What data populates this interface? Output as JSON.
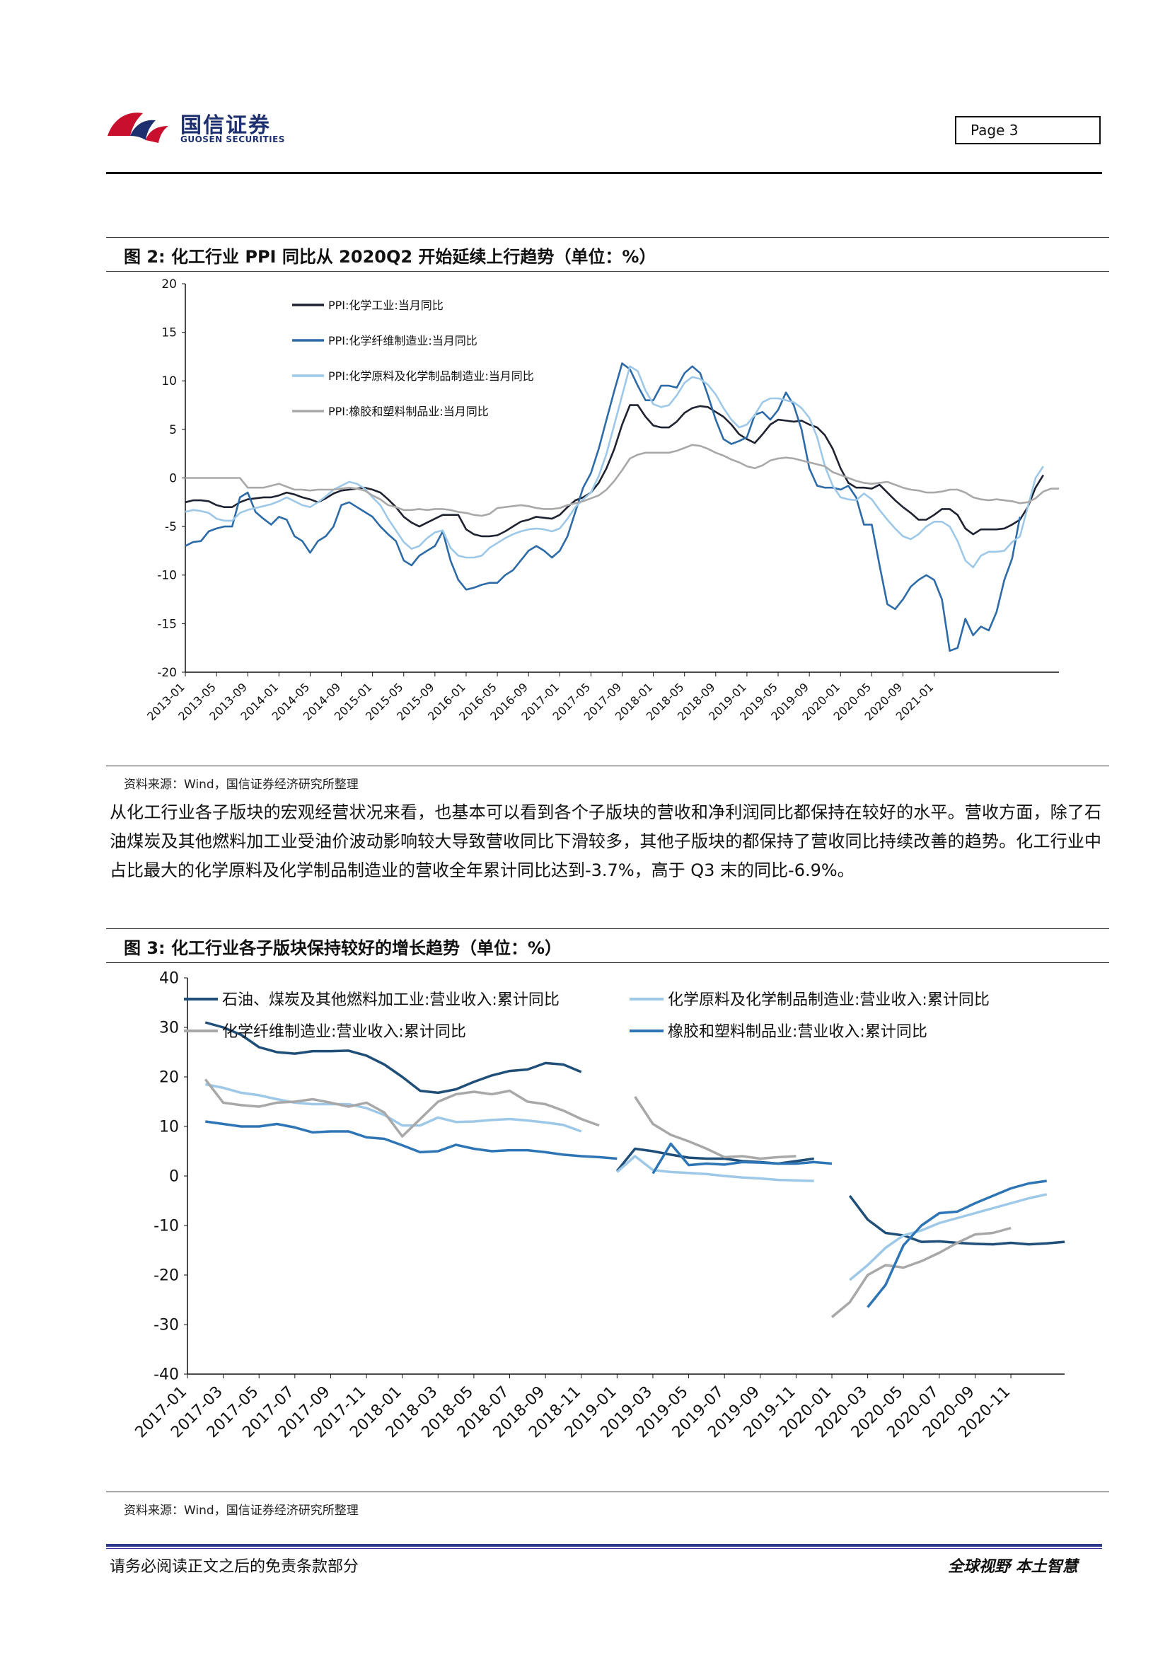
{
  "header": {
    "logo_cn": "国信证券",
    "logo_en": "GUOSEN SECURITIES",
    "page_label": "Page  3"
  },
  "figure2": {
    "title": "图 2:  化工行业 PPI 同比从 2020Q2 开始延续上行趋势（单位：%）",
    "source": "资料来源：Wind，国信证券经济研究所整理"
  },
  "paragraph": "从化工行业各子版块的宏观经营状况来看，也基本可以看到各个子版块的营收和净利润同比都保持在较好的水平。营收方面，除了石油煤炭及其他燃料加工业受油价波动影响较大导致营收同比下滑较多，其他子版块的都保持了营收同比持续改善的趋势。化工行业中占比最大的化学原料及化学制品制造业的营收全年累计同比达到-3.7%，高于 Q3 末的同比-6.9%。",
  "figure3": {
    "title": "图 3:  化工行业各子版块保持较好的增长趋势（单位：%）",
    "source": "资料来源：Wind，国信证券经济研究所整理"
  },
  "footer": {
    "left": "请务必阅读正文之后的免责条款部分",
    "right": "全球视野  本土智慧"
  },
  "chart_data": [
    {
      "type": "line",
      "ylim": [
        -20,
        20
      ],
      "yticks": [
        -20,
        -15,
        -10,
        -5,
        0,
        5,
        10,
        15,
        20
      ],
      "x_start": "2013-01",
      "x_labels": [
        "2013-01",
        "2013-05",
        "2013-09",
        "2014-01",
        "2014-05",
        "2014-09",
        "2015-01",
        "2015-05",
        "2015-09",
        "2016-01",
        "2016-05",
        "2016-09",
        "2017-01",
        "2017-05",
        "2017-09",
        "2018-01",
        "2018-05",
        "2018-09",
        "2019-01",
        "2019-05",
        "2019-09",
        "2020-01",
        "2020-05",
        "2020-09",
        "2021-01"
      ],
      "legend_position": "top-left",
      "series": [
        {
          "name": "PPI:化学工业:当月同比",
          "color": "#1f2230",
          "values": [
            -2.5,
            -2.3,
            -2.3,
            -2.4,
            -2.8,
            -3.0,
            -3.0,
            -2.5,
            -2.2,
            -2.1,
            -2.0,
            -2.0,
            -1.8,
            -1.5,
            -1.7,
            -2.0,
            -2.2,
            -2.5,
            -2.1,
            -1.6,
            -1.3,
            -1.2,
            -1.1,
            -1.0,
            -1.2,
            -1.5,
            -2.2,
            -3.0,
            -4.0,
            -4.6,
            -5.0,
            -4.6,
            -4.2,
            -3.8,
            -3.8,
            -3.8,
            -5.3,
            -5.8,
            -6.0,
            -6.0,
            -5.9,
            -5.5,
            -5.0,
            -4.5,
            -4.3,
            -4.0,
            -4.1,
            -4.2,
            -3.8,
            -3.0,
            -2.3,
            -2.0,
            -1.5,
            -0.5,
            1.0,
            3.0,
            5.5,
            7.5,
            7.5,
            6.3,
            5.4,
            5.2,
            5.2,
            5.8,
            6.7,
            7.2,
            7.4,
            7.3,
            6.8,
            6.3,
            5.5,
            4.5,
            4.0,
            3.6,
            4.5,
            5.5,
            6.0,
            5.9,
            5.8,
            5.9,
            5.5,
            5.2,
            4.4,
            3.0,
            1.0,
            -0.5,
            -1.0,
            -1.0,
            -1.1,
            -0.7,
            -1.5,
            -2.3,
            -3.0,
            -3.6,
            -4.3,
            -4.3,
            -3.8,
            -3.2,
            -3.2,
            -3.8,
            -5.2,
            -5.8,
            -5.3,
            -5.3,
            -5.3,
            -5.2,
            -4.8,
            -4.3,
            -3.0,
            -1.0,
            0.3
          ]
        },
        {
          "name": "PPI:化学纤维制造业:当月同比",
          "color": "#2d6ba8",
          "values": [
            -7.0,
            -6.6,
            -6.5,
            -5.5,
            -5.2,
            -5.0,
            -5.0,
            -2.0,
            -1.5,
            -3.5,
            -4.2,
            -4.8,
            -4.0,
            -4.3,
            -6.0,
            -6.5,
            -7.7,
            -6.5,
            -6.0,
            -5.0,
            -2.8,
            -2.5,
            -3.0,
            -3.5,
            -4.0,
            -5.0,
            -5.8,
            -6.5,
            -8.5,
            -9.0,
            -8.0,
            -7.5,
            -7.0,
            -5.5,
            -8.5,
            -10.5,
            -11.5,
            -11.3,
            -11.0,
            -10.8,
            -10.8,
            -10.0,
            -9.5,
            -8.5,
            -7.5,
            -7.0,
            -7.5,
            -8.2,
            -7.5,
            -6.0,
            -3.5,
            -1.0,
            0.5,
            3.0,
            6.0,
            9.0,
            11.8,
            11.2,
            9.5,
            8.0,
            8.0,
            9.5,
            9.5,
            9.3,
            10.8,
            11.5,
            10.8,
            8.5,
            6.0,
            4.0,
            3.5,
            3.8,
            4.2,
            6.5,
            6.8,
            6.0,
            7.0,
            8.8,
            7.5,
            5.0,
            1.0,
            -0.8,
            -1.0,
            -1.0,
            -1.2,
            -0.8,
            -2.0,
            -4.8,
            -4.8,
            -9.0,
            -13.0,
            -13.5,
            -12.5,
            -11.2,
            -10.5,
            -10.0,
            -10.5,
            -12.5,
            -17.8,
            -17.5,
            -14.5,
            -16.2,
            -15.3,
            -15.7,
            -13.8,
            -10.5,
            -8.3,
            -4.0
          ]
        },
        {
          "name": "PPI:化学原料及化学制品制造业:当月同比",
          "color": "#9ec8e8",
          "values": [
            -3.5,
            -3.3,
            -3.4,
            -3.6,
            -4.2,
            -4.4,
            -4.4,
            -3.6,
            -3.3,
            -3.1,
            -2.9,
            -2.7,
            -2.4,
            -2.0,
            -2.4,
            -2.8,
            -3.0,
            -2.5,
            -1.9,
            -1.2,
            -0.8,
            -0.4,
            -0.6,
            -1.1,
            -2.0,
            -2.8,
            -4.2,
            -5.4,
            -6.6,
            -7.3,
            -7.0,
            -6.2,
            -5.6,
            -5.4,
            -7.2,
            -8.0,
            -8.2,
            -8.2,
            -8.0,
            -7.2,
            -6.7,
            -6.2,
            -5.8,
            -5.5,
            -5.3,
            -5.2,
            -5.3,
            -5.5,
            -5.2,
            -4.2,
            -3.0,
            -2.2,
            -1.5,
            0.2,
            2.5,
            5.5,
            8.5,
            11.5,
            11.0,
            9.0,
            7.6,
            7.3,
            7.5,
            8.5,
            9.8,
            10.4,
            10.2,
            9.6,
            8.6,
            7.2,
            6.0,
            5.2,
            5.5,
            6.5,
            7.8,
            8.2,
            8.2,
            8.0,
            7.8,
            7.2,
            6.2,
            4.2,
            1.2,
            -0.8,
            -2.0,
            -2.2,
            -2.3,
            -1.6,
            -2.2,
            -3.3,
            -4.3,
            -5.2,
            -6.0,
            -6.3,
            -5.8,
            -5.0,
            -4.5,
            -4.5,
            -5.0,
            -6.5,
            -8.5,
            -9.2,
            -8.0,
            -7.6,
            -7.6,
            -7.5,
            -6.6,
            -6.0,
            -3.0,
            0.0,
            1.2
          ]
        },
        {
          "name": "PPI:橡胶和塑料制品业:当月同比",
          "color": "#a8a8a8",
          "values": [
            0.0,
            0.0,
            0.0,
            0.0,
            0.0,
            0.0,
            0.0,
            0.0,
            -1.0,
            -1.0,
            -1.0,
            -0.8,
            -0.6,
            -0.9,
            -1.2,
            -1.2,
            -1.3,
            -1.2,
            -1.2,
            -1.2,
            -1.1,
            -1.0,
            -1.1,
            -1.3,
            -1.8,
            -2.2,
            -2.8,
            -3.0,
            -3.3,
            -3.3,
            -3.2,
            -3.3,
            -3.2,
            -3.2,
            -3.3,
            -3.5,
            -3.6,
            -3.8,
            -3.9,
            -3.7,
            -3.1,
            -3.0,
            -2.9,
            -2.8,
            -2.9,
            -3.1,
            -3.2,
            -3.2,
            -3.1,
            -2.8,
            -2.6,
            -2.4,
            -2.1,
            -1.8,
            -1.2,
            -0.3,
            0.8,
            2.0,
            2.4,
            2.6,
            2.6,
            2.6,
            2.6,
            2.8,
            3.1,
            3.4,
            3.3,
            3.0,
            2.6,
            2.3,
            1.9,
            1.6,
            1.2,
            1.0,
            1.3,
            1.8,
            2.0,
            2.1,
            2.0,
            1.8,
            1.6,
            1.4,
            1.2,
            0.6,
            0.3,
            0.0,
            -0.3,
            -0.5,
            -0.6,
            -0.5,
            -0.4,
            -0.7,
            -1.0,
            -1.2,
            -1.3,
            -1.5,
            -1.5,
            -1.4,
            -1.2,
            -1.2,
            -1.5,
            -2.0,
            -2.2,
            -2.3,
            -2.2,
            -2.3,
            -2.4,
            -2.6,
            -2.5,
            -2.1,
            -1.4,
            -1.1,
            -1.1
          ]
        }
      ]
    },
    {
      "type": "line",
      "ylim": [
        -40,
        40
      ],
      "yticks": [
        -40,
        -30,
        -20,
        -10,
        0,
        10,
        20,
        30,
        40
      ],
      "x_start": "2017-01",
      "x_labels": [
        "2017-01",
        "2017-03",
        "2017-05",
        "2017-07",
        "2017-09",
        "2017-11",
        "2018-01",
        "2018-03",
        "2018-05",
        "2018-07",
        "2018-09",
        "2018-11",
        "2019-01",
        "2019-03",
        "2019-05",
        "2019-07",
        "2019-09",
        "2019-11",
        "2020-01",
        "2020-03",
        "2020-05",
        "2020-07",
        "2020-09",
        "2020-11"
      ],
      "legend_position": "top",
      "series": [
        {
          "name": "石油、煤炭及其他燃料加工业:营业收入:累计同比",
          "color": "#1f4e79",
          "values": [
            null,
            31.0,
            30.0,
            28.5,
            26.0,
            25.0,
            24.7,
            25.2,
            25.2,
            25.3,
            24.3,
            22.5,
            20.0,
            17.2,
            16.8,
            17.5,
            19.0,
            20.3,
            21.2,
            21.5,
            22.8,
            22.5,
            21.0,
            null,
            1.0,
            5.5,
            5.0,
            4.3,
            3.7,
            3.5,
            3.5,
            3.0,
            2.8,
            2.5,
            3.0,
            3.5,
            null,
            -4.0,
            -8.8,
            -11.5,
            -12.0,
            -13.3,
            -13.2,
            -13.5,
            -13.7,
            -13.8,
            -13.5,
            -13.8,
            -13.6,
            -13.3
          ]
        },
        {
          "name": "化学原料及化学制品制造业:营业收入:累计同比",
          "color": "#9ec8e8",
          "values": [
            null,
            18.5,
            17.8,
            16.8,
            16.3,
            15.5,
            14.8,
            14.5,
            14.5,
            14.5,
            13.7,
            12.3,
            10.2,
            10.2,
            11.8,
            10.9,
            11.0,
            11.3,
            11.5,
            11.2,
            10.8,
            10.3,
            9.0,
            null,
            0.8,
            4.0,
            1.2,
            0.8,
            0.6,
            0.4,
            0.0,
            -0.3,
            -0.5,
            -0.8,
            -0.9,
            -1.0,
            null,
            -21.0,
            -18.0,
            -14.5,
            -12.0,
            -11.0,
            -9.5,
            -8.5,
            -7.5,
            -6.5,
            -5.5,
            -4.5,
            -3.7
          ]
        },
        {
          "name": "化学纤维制造业:营业收入:累计同比",
          "color": "#a8a8a8",
          "values": [
            null,
            19.5,
            14.8,
            14.3,
            14.0,
            14.8,
            15.0,
            15.5,
            14.8,
            14.0,
            14.8,
            12.8,
            8.0,
            11.5,
            15.0,
            16.5,
            17.0,
            16.5,
            17.2,
            15.0,
            14.5,
            13.2,
            11.5,
            10.2,
            null,
            16.0,
            10.5,
            8.3,
            7.0,
            5.5,
            3.8,
            4.0,
            3.5,
            3.8,
            4.0,
            null,
            -28.5,
            -25.5,
            -20.0,
            -18.0,
            -18.5,
            -17.2,
            -15.5,
            -13.5,
            -11.8,
            -11.5,
            -10.5
          ]
        },
        {
          "name": "橡胶和塑料制品业:营业收入:累计同比",
          "color": "#2e75b6",
          "values": [
            null,
            11.0,
            10.5,
            10.0,
            10.0,
            10.5,
            9.8,
            8.8,
            9.0,
            9.0,
            7.8,
            7.5,
            6.2,
            4.8,
            5.0,
            6.3,
            5.5,
            5.0,
            5.2,
            5.2,
            4.8,
            4.3,
            4.0,
            3.8,
            3.5,
            null,
            0.5,
            6.5,
            2.2,
            2.5,
            2.3,
            2.8,
            2.7,
            2.5,
            2.5,
            2.8,
            2.5,
            null,
            -26.5,
            -22.0,
            -14.0,
            -10.0,
            -7.5,
            -7.2,
            -5.5,
            -4.0,
            -2.5,
            -1.5,
            -1.0
          ]
        }
      ]
    }
  ]
}
